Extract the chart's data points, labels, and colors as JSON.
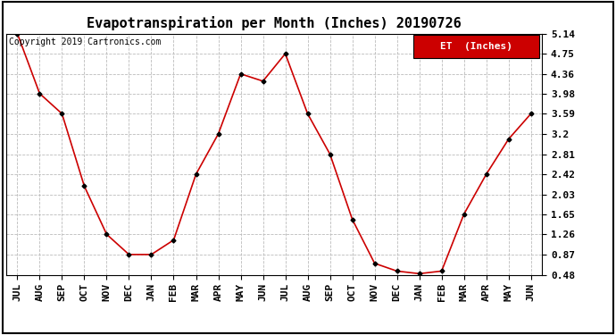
{
  "title": "Evapotranspiration per Month (Inches) 20190726",
  "copyright": "Copyright 2019 Cartronics.com",
  "legend_label": "ET  (Inches)",
  "x_labels": [
    "JUL",
    "AUG",
    "SEP",
    "OCT",
    "NOV",
    "DEC",
    "JAN",
    "FEB",
    "MAR",
    "APR",
    "MAY",
    "JUN",
    "JUL",
    "AUG",
    "SEP",
    "OCT",
    "NOV",
    "DEC",
    "JAN",
    "FEB",
    "MAR",
    "APR",
    "MAY",
    "JUN"
  ],
  "y_values": [
    5.14,
    3.98,
    3.59,
    2.19,
    1.26,
    0.87,
    0.87,
    1.15,
    2.42,
    3.2,
    4.36,
    4.22,
    4.75,
    3.59,
    2.81,
    1.55,
    0.7,
    0.55,
    0.5,
    0.55,
    1.65,
    2.42,
    3.1,
    3.59
  ],
  "y_ticks": [
    0.48,
    0.87,
    1.26,
    1.65,
    2.03,
    2.42,
    2.81,
    3.2,
    3.59,
    3.98,
    4.36,
    4.75,
    5.14
  ],
  "y_min": 0.48,
  "y_max": 5.14,
  "line_color": "#cc0000",
  "marker_color": "#000000",
  "legend_bg": "#cc0000",
  "legend_text_color": "#ffffff",
  "background_color": "#ffffff",
  "grid_color": "#bbbbbb",
  "title_fontsize": 11,
  "copyright_fontsize": 7,
  "tick_fontsize": 8,
  "legend_fontsize": 8
}
